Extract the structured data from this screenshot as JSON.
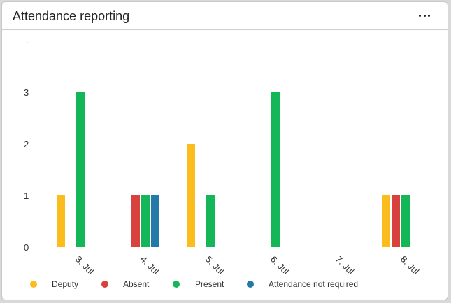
{
  "header": {
    "title": "Attendance reporting",
    "menu_icon": "ellipsis-icon"
  },
  "chart_data": {
    "type": "bar",
    "categories": [
      "3. Jul",
      "4. Jul",
      "5. Jul",
      "6. Jul",
      "7. Jul",
      "8. Jul"
    ],
    "series": [
      {
        "name": "Deputy",
        "color": "#fbbc1d",
        "values": [
          1,
          0,
          2,
          0,
          0,
          1
        ]
      },
      {
        "name": "Absent",
        "color": "#d9413f",
        "values": [
          0,
          1,
          0,
          0,
          0,
          1
        ]
      },
      {
        "name": "Present",
        "color": "#13b757",
        "values": [
          3,
          1,
          1,
          3,
          0,
          1
        ]
      },
      {
        "name": "Attendance not required",
        "color": "#2379a8",
        "values": [
          0,
          1,
          0,
          0,
          0,
          0
        ]
      }
    ],
    "yticks": [
      "0",
      "1",
      "2",
      "3"
    ],
    "ylim": [
      0,
      4
    ],
    "title": "",
    "xlabel": "",
    "ylabel": "",
    "legend_position": "bottom"
  }
}
